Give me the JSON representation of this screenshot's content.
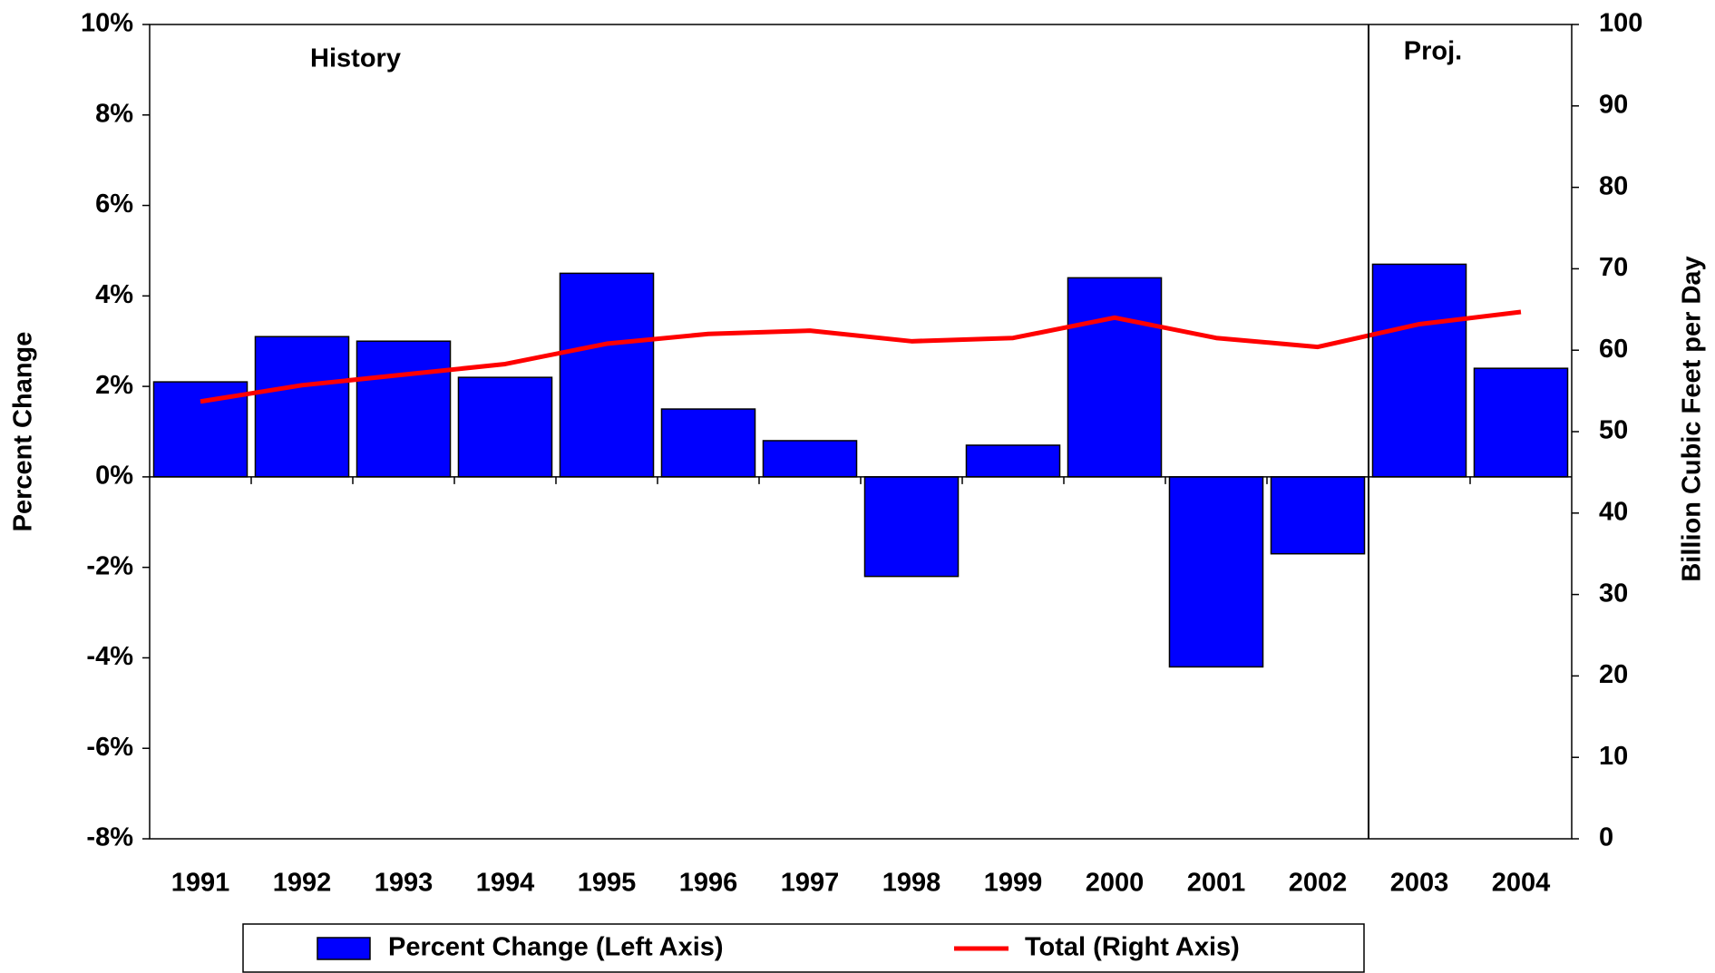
{
  "chart_data": {
    "type": "bar_line",
    "categories": [
      "1991",
      "1992",
      "1993",
      "1994",
      "1995",
      "1996",
      "1997",
      "1998",
      "1999",
      "2000",
      "2001",
      "2002",
      "2003",
      "2004"
    ],
    "series": [
      {
        "name": "Percent Change (Left Axis)",
        "type": "bar",
        "color": "#0000ff",
        "values": [
          2.1,
          3.1,
          3.0,
          2.2,
          4.5,
          1.5,
          0.8,
          -2.2,
          0.7,
          4.4,
          -4.2,
          -1.7,
          4.7,
          2.4
        ]
      },
      {
        "name": "Total (Right Axis)",
        "type": "line",
        "axis": "y2",
        "color": "#ff0000",
        "values": [
          53.7,
          55.7,
          57.0,
          58.3,
          60.8,
          62.0,
          62.4,
          61.1,
          61.5,
          64.0,
          61.5,
          60.4,
          63.2,
          64.7
        ]
      }
    ],
    "ylabel": "Percent Change",
    "y2label": "Billion Cubic Feet per Day",
    "ylim": [
      -8,
      10
    ],
    "yticks": [
      {
        "value": -8,
        "label": "-8%"
      },
      {
        "value": -6,
        "label": "-6%"
      },
      {
        "value": -4,
        "label": "-4%"
      },
      {
        "value": -2,
        "label": "-2%"
      },
      {
        "value": 0,
        "label": "0%"
      },
      {
        "value": 2,
        "label": "2%"
      },
      {
        "value": 4,
        "label": "4%"
      },
      {
        "value": 6,
        "label": "6%"
      },
      {
        "value": 8,
        "label": "8%"
      },
      {
        "value": 10,
        "label": "10%"
      }
    ],
    "y2lim": [
      0,
      100
    ],
    "y2ticks": [
      0,
      10,
      20,
      30,
      40,
      50,
      60,
      70,
      80,
      90,
      100
    ],
    "annotations": [
      "History",
      "Proj."
    ]
  }
}
